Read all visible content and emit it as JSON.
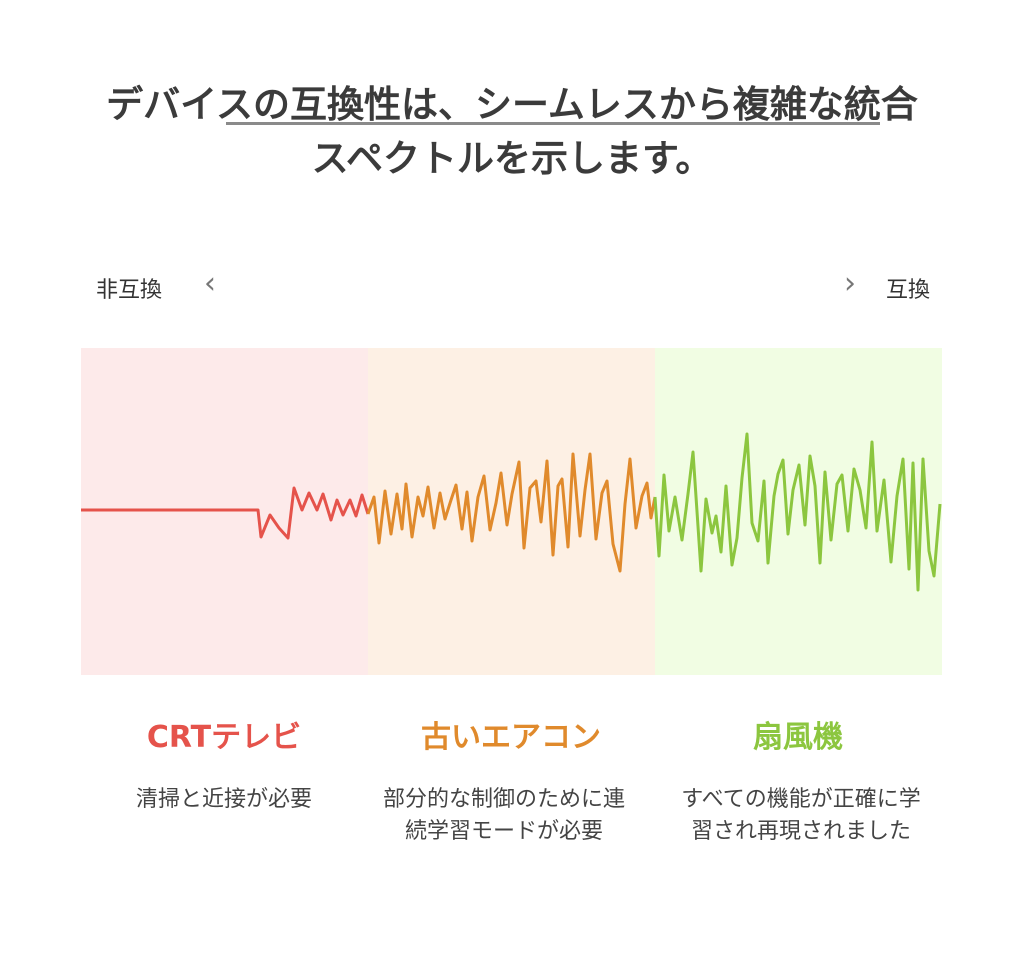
{
  "title": {
    "line1": "デバイスの互換性は、シームレスから複雑な統合",
    "line2": "スペクトルを示します。"
  },
  "scale": {
    "left_label": "非互換",
    "right_label": "互換",
    "left_arrow": "‹",
    "right_arrow": "›"
  },
  "colors": {
    "red": "#e5534b",
    "orange": "#e08a2c",
    "green": "#8cc63f",
    "red_bg": "#fdeaea",
    "orange_bg": "#fdf0e4",
    "green_bg": "#f1fde3"
  },
  "devices": [
    {
      "name": "CRTテレビ",
      "description": "清掃と近接が必要"
    },
    {
      "name": "古いエアコン",
      "description": "部分的な制御のために連続学習モードが必要"
    },
    {
      "name": "扇風機",
      "description": "すべての機能が正確に学習され再現されました"
    }
  ]
}
